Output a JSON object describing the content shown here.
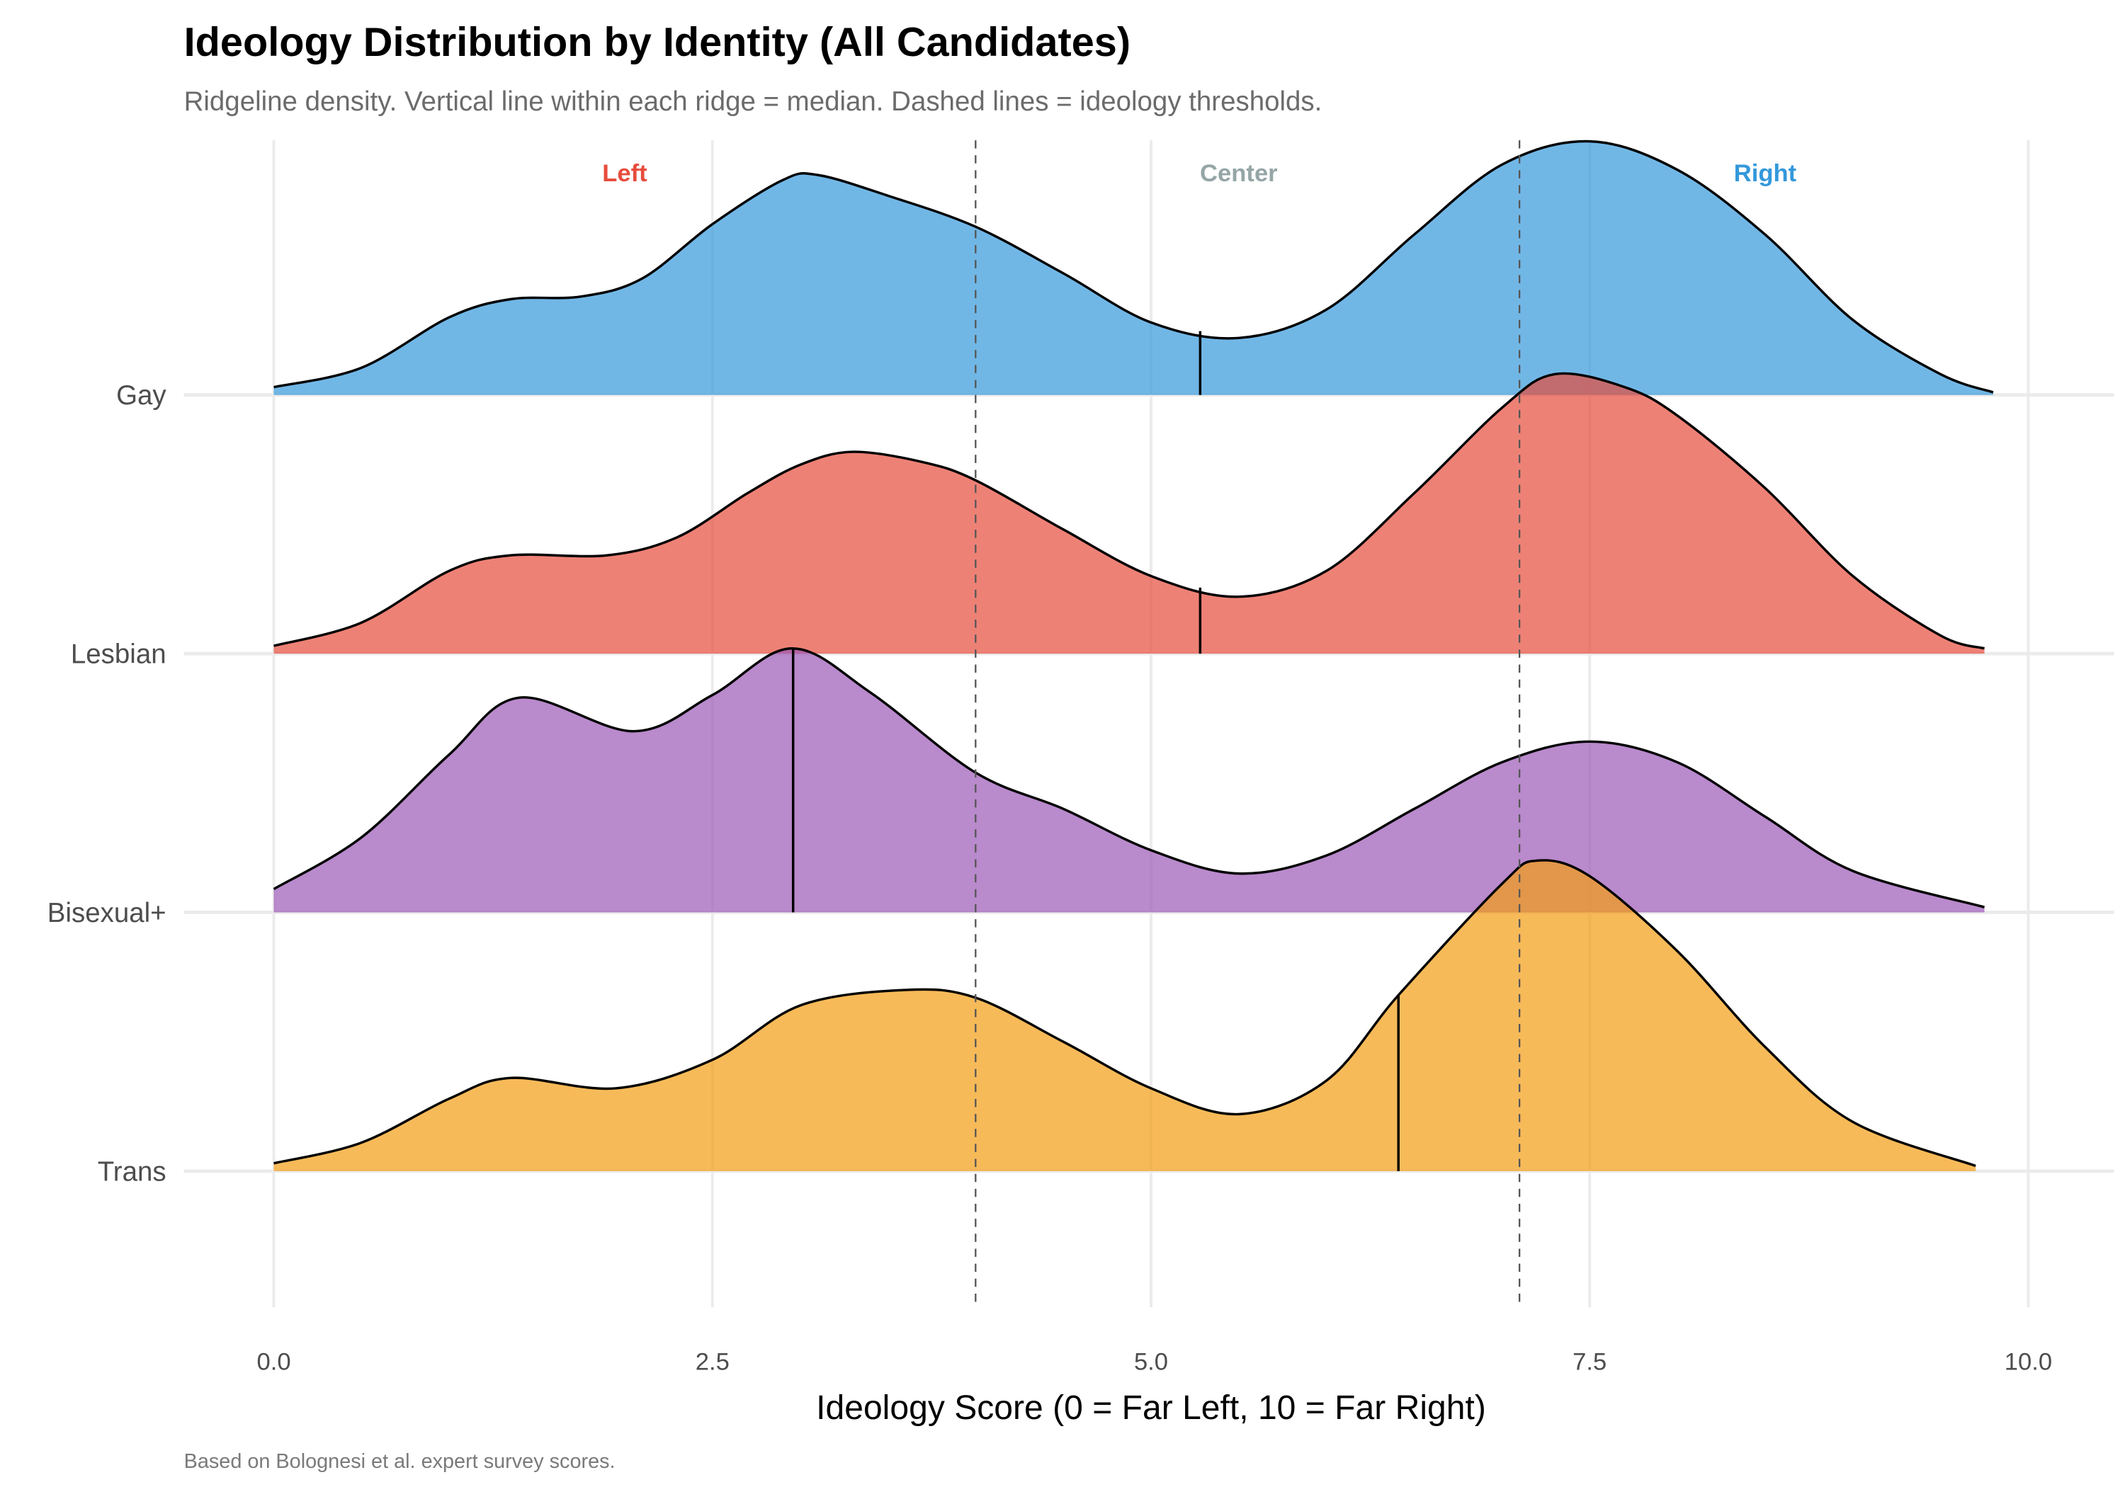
{
  "chart_data": {
    "type": "ridgeline",
    "title": "Ideology Distribution by Identity (All Candidates)",
    "subtitle": "Ridgeline density. Vertical line within each ridge = median. Dashed lines = ideology thresholds.",
    "xlabel": "Ideology Score (0 = Far Left, 10 = Far Right)",
    "ylabel": "",
    "caption": "Based on Bolognesi et al. expert survey scores.",
    "xlim": [
      0,
      10
    ],
    "x_ticks": [
      "0.0",
      "2.5",
      "5.0",
      "7.5",
      "10.0"
    ],
    "x_tick_values": [
      0,
      2.5,
      5,
      7.5,
      10
    ],
    "grid": true,
    "thresholds": [
      4.0,
      7.1
    ],
    "zone_labels": [
      {
        "text": "Left",
        "x": 2.0,
        "color": "#E74C3C"
      },
      {
        "text": "Center",
        "x": 5.5,
        "color": "#95A5A6"
      },
      {
        "text": "Right",
        "x": 8.5,
        "color": "#3498DB"
      }
    ],
    "density_note": "relative ridge heights (1 = spacing between ridges)",
    "series": [
      {
        "name": "Gay",
        "color": "#3498DB",
        "median": 5.28,
        "density": [
          [
            0,
            0.03
          ],
          [
            0.5,
            0.105
          ],
          [
            1.0,
            0.3
          ],
          [
            1.35,
            0.37
          ],
          [
            1.75,
            0.38
          ],
          [
            2.1,
            0.45
          ],
          [
            2.5,
            0.66
          ],
          [
            2.9,
            0.83
          ],
          [
            3.1,
            0.85
          ],
          [
            3.5,
            0.77
          ],
          [
            4.0,
            0.65
          ],
          [
            4.5,
            0.47
          ],
          [
            5.0,
            0.28
          ],
          [
            5.5,
            0.22
          ],
          [
            6.0,
            0.33
          ],
          [
            6.5,
            0.62
          ],
          [
            7.0,
            0.89
          ],
          [
            7.5,
            0.98
          ],
          [
            8.0,
            0.87
          ],
          [
            8.5,
            0.62
          ],
          [
            9.0,
            0.29
          ],
          [
            9.5,
            0.08
          ],
          [
            9.8,
            0.01
          ]
        ]
      },
      {
        "name": "Lesbian",
        "color": "#E74C3C",
        "median": 5.28,
        "density": [
          [
            0,
            0.03
          ],
          [
            0.5,
            0.12
          ],
          [
            1.0,
            0.32
          ],
          [
            1.35,
            0.38
          ],
          [
            1.9,
            0.38
          ],
          [
            2.3,
            0.45
          ],
          [
            2.7,
            0.62
          ],
          [
            3.0,
            0.73
          ],
          [
            3.3,
            0.78
          ],
          [
            3.7,
            0.74
          ],
          [
            4.0,
            0.67
          ],
          [
            4.5,
            0.48
          ],
          [
            5.0,
            0.3
          ],
          [
            5.5,
            0.22
          ],
          [
            6.0,
            0.32
          ],
          [
            6.5,
            0.62
          ],
          [
            7.0,
            0.95
          ],
          [
            7.3,
            1.08
          ],
          [
            7.7,
            1.03
          ],
          [
            8.0,
            0.92
          ],
          [
            8.5,
            0.64
          ],
          [
            9.0,
            0.3
          ],
          [
            9.5,
            0.07
          ],
          [
            9.75,
            0.02
          ]
        ]
      },
      {
        "name": "Bisexual+",
        "color": "#9B59B6",
        "median": 2.96,
        "density": [
          [
            0,
            0.09
          ],
          [
            0.5,
            0.29
          ],
          [
            1.0,
            0.61
          ],
          [
            1.4,
            0.83
          ],
          [
            2.05,
            0.7
          ],
          [
            2.5,
            0.84
          ],
          [
            2.95,
            1.02
          ],
          [
            3.4,
            0.85
          ],
          [
            4.0,
            0.54
          ],
          [
            4.5,
            0.4
          ],
          [
            5.0,
            0.24
          ],
          [
            5.5,
            0.15
          ],
          [
            6.0,
            0.22
          ],
          [
            6.5,
            0.4
          ],
          [
            7.0,
            0.58
          ],
          [
            7.5,
            0.66
          ],
          [
            8.0,
            0.58
          ],
          [
            8.5,
            0.37
          ],
          [
            9.0,
            0.16
          ],
          [
            9.75,
            0.02
          ]
        ]
      },
      {
        "name": "Trans",
        "color": "#F39C12",
        "median": 6.41,
        "density": [
          [
            0,
            0.03
          ],
          [
            0.5,
            0.11
          ],
          [
            1.0,
            0.28
          ],
          [
            1.35,
            0.36
          ],
          [
            1.95,
            0.32
          ],
          [
            2.5,
            0.43
          ],
          [
            3.0,
            0.64
          ],
          [
            3.6,
            0.7
          ],
          [
            4.0,
            0.67
          ],
          [
            4.5,
            0.5
          ],
          [
            5.0,
            0.32
          ],
          [
            5.5,
            0.22
          ],
          [
            6.0,
            0.35
          ],
          [
            6.41,
            0.68
          ],
          [
            7.0,
            1.11
          ],
          [
            7.2,
            1.2
          ],
          [
            7.5,
            1.14
          ],
          [
            8.0,
            0.85
          ],
          [
            8.5,
            0.48
          ],
          [
            9.0,
            0.19
          ],
          [
            9.7,
            0.02
          ]
        ]
      }
    ]
  }
}
